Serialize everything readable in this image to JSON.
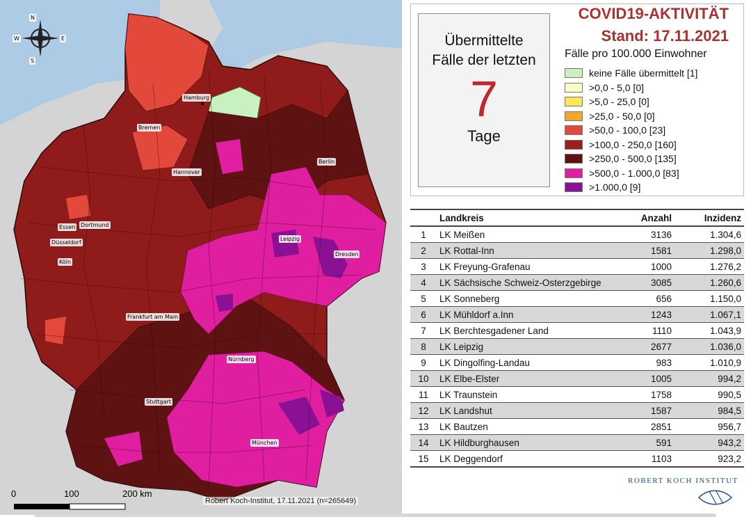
{
  "legend": {
    "title_line1": "COVID19-AKTIVITÄT",
    "title_line2": "Stand: 17.11.2021",
    "subtitle": "Fälle pro 100.000 Einwohner",
    "items": [
      {
        "label": "keine Fälle übermittelt [1]",
        "color": "#c8f0c0"
      },
      {
        "label": ">0,0 - 5,0 [0]",
        "color": "#fdfbc4"
      },
      {
        "label": ">5,0 - 25,0 [0]",
        "color": "#fbe85a"
      },
      {
        "label": ">25,0 - 50,0 [0]",
        "color": "#f4a72c"
      },
      {
        "label": ">50,0 - 100,0 [23]",
        "color": "#e2493a"
      },
      {
        "label": ">100,0 - 250,0 [160]",
        "color": "#9a1e1e"
      },
      {
        "label": ">250,0 - 500,0 [135]",
        "color": "#5e1212"
      },
      {
        "label": ">500,0 - 1.000,0 [83]",
        "color": "#e01fa0"
      },
      {
        "label": ">1.000,0 [9]",
        "color": "#8a1194"
      }
    ]
  },
  "days_box": {
    "label": "Übermittelte Fälle der letzten",
    "value": "7",
    "unit": "Tage"
  },
  "table": {
    "headers": [
      "",
      "Landkreis",
      "Anzahl",
      "Inzidenz"
    ],
    "rows": [
      [
        "1",
        "LK Meißen",
        "3136",
        "1.304,6"
      ],
      [
        "2",
        "LK Rottal-Inn",
        "1581",
        "1.298,0"
      ],
      [
        "3",
        "LK Freyung-Grafenau",
        "1000",
        "1.276,2"
      ],
      [
        "4",
        "LK Sächsische Schweiz-Osterzgebirge",
        "3085",
        "1.260,6"
      ],
      [
        "5",
        "LK Sonneberg",
        "656",
        "1.150,0"
      ],
      [
        "6",
        "LK Mühldorf a.Inn",
        "1243",
        "1.067,1"
      ],
      [
        "7",
        "LK Berchtesgadener Land",
        "1110",
        "1.043,9"
      ],
      [
        "8",
        "LK Leipzig",
        "2677",
        "1.036,0"
      ],
      [
        "9",
        "LK Dingolfing-Landau",
        "983",
        "1.010,9"
      ],
      [
        "10",
        "LK Elbe-Elster",
        "1005",
        "994,2"
      ],
      [
        "11",
        "LK Traunstein",
        "1758",
        "990,5"
      ],
      [
        "12",
        "LK Landshut",
        "1587",
        "984,5"
      ],
      [
        "13",
        "LK Bautzen",
        "2851",
        "956,7"
      ],
      [
        "14",
        "LK Hildburghausen",
        "591",
        "943,2"
      ],
      [
        "15",
        "LK Deggendorf",
        "1103",
        "923,2"
      ]
    ]
  },
  "map": {
    "cities": [
      "Hamburg",
      "Bremen",
      "Berlin",
      "Hannover",
      "Essen",
      "Dortmund",
      "Düsseldorf",
      "Leipzig",
      "Dresden",
      "Köln",
      "Frankfurt am Main",
      "Nürnberg",
      "Stuttgart",
      "München"
    ],
    "scale": {
      "labels": [
        "0",
        "100",
        "200 km"
      ]
    },
    "credit": "Robert Koch-Institut, 17.11.2021 (n=265649)",
    "compass": [
      "N",
      "S",
      "E",
      "W"
    ]
  },
  "footer": {
    "institute": "ROBERT KOCH INSTITUT"
  }
}
